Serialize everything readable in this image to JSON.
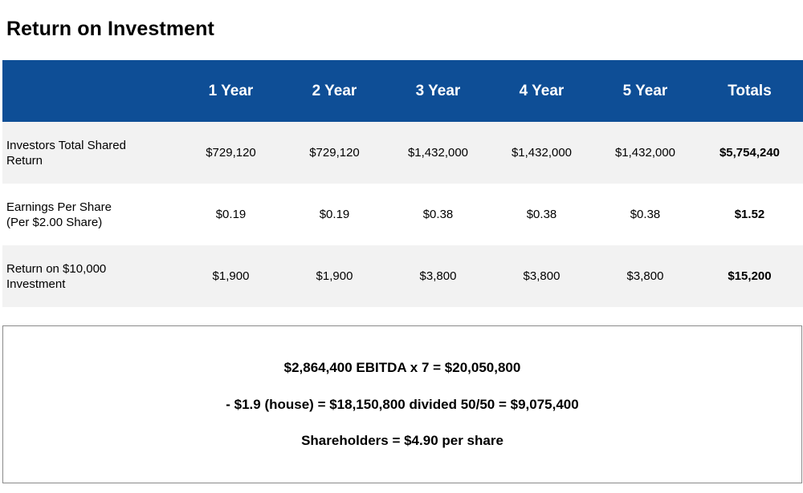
{
  "title": "Return on Investment",
  "table": {
    "columns": [
      "",
      "1 Year",
      "2 Year",
      "3 Year",
      "4 Year",
      "5 Year",
      "Totals"
    ],
    "rows": [
      {
        "label_line1": "Investors Total Shared",
        "label_line2": "Return",
        "values": [
          "$729,120",
          "$729,120",
          "$1,432,000",
          "$1,432,000",
          "$1,432,000"
        ],
        "total": "$5,754,240"
      },
      {
        "label_line1": "Earnings Per Share",
        "label_line2": "(Per $2.00 Share)",
        "values": [
          "$0.19",
          "$0.19",
          "$0.38",
          "$0.38",
          "$0.38"
        ],
        "total": "$1.52"
      },
      {
        "label_line1": "Return on $10,000",
        "label_line2": "Investment",
        "values": [
          "$1,900",
          "$1,900",
          "$3,800",
          "$3,800",
          "$3,800"
        ],
        "total": "$15,200"
      }
    ]
  },
  "summary": {
    "line1": "$2,864,400 EBITDA x 7 = $20,050,800",
    "line2": "- $1.9 (house) = $18,150,800 divided 50/50 = $9,075,400",
    "line3": "Shareholders = $4.90 per share"
  },
  "colors": {
    "header_background": "#0e4e96",
    "header_text": "#ffffff",
    "shaded_row": "#f2f2f2",
    "box_border": "#8a8a8a"
  }
}
